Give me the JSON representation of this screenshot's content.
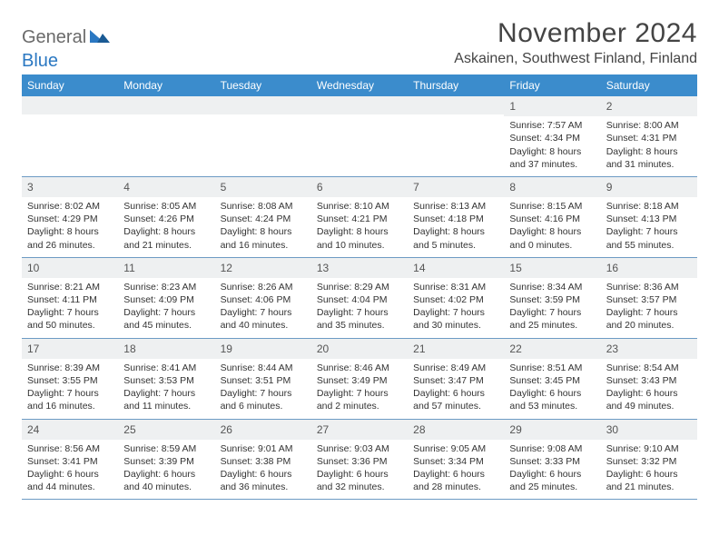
{
  "logo": {
    "text1": "General",
    "text2": "Blue"
  },
  "title": "November 2024",
  "location": "Askainen, Southwest Finland, Finland",
  "colors": {
    "header_bg": "#3b8ccc",
    "header_text": "#ffffff",
    "daynum_bg": "#eef0f1",
    "border": "#6d9bc4",
    "body_text": "#333333",
    "title_text": "#444444",
    "logo_gray": "#6a6a6a",
    "logo_blue": "#2b78c2"
  },
  "weekdays": [
    "Sunday",
    "Monday",
    "Tuesday",
    "Wednesday",
    "Thursday",
    "Friday",
    "Saturday"
  ],
  "layout": {
    "columns": 7,
    "rows": 5,
    "cell_font_size": 10.5,
    "weekday_font_size": 12,
    "title_font_size": 30,
    "location_font_size": 16
  },
  "weeks": [
    [
      null,
      null,
      null,
      null,
      null,
      {
        "n": "1",
        "sunrise": "Sunrise: 7:57 AM",
        "sunset": "Sunset: 4:34 PM",
        "daylight": "Daylight: 8 hours and 37 minutes."
      },
      {
        "n": "2",
        "sunrise": "Sunrise: 8:00 AM",
        "sunset": "Sunset: 4:31 PM",
        "daylight": "Daylight: 8 hours and 31 minutes."
      }
    ],
    [
      {
        "n": "3",
        "sunrise": "Sunrise: 8:02 AM",
        "sunset": "Sunset: 4:29 PM",
        "daylight": "Daylight: 8 hours and 26 minutes."
      },
      {
        "n": "4",
        "sunrise": "Sunrise: 8:05 AM",
        "sunset": "Sunset: 4:26 PM",
        "daylight": "Daylight: 8 hours and 21 minutes."
      },
      {
        "n": "5",
        "sunrise": "Sunrise: 8:08 AM",
        "sunset": "Sunset: 4:24 PM",
        "daylight": "Daylight: 8 hours and 16 minutes."
      },
      {
        "n": "6",
        "sunrise": "Sunrise: 8:10 AM",
        "sunset": "Sunset: 4:21 PM",
        "daylight": "Daylight: 8 hours and 10 minutes."
      },
      {
        "n": "7",
        "sunrise": "Sunrise: 8:13 AM",
        "sunset": "Sunset: 4:18 PM",
        "daylight": "Daylight: 8 hours and 5 minutes."
      },
      {
        "n": "8",
        "sunrise": "Sunrise: 8:15 AM",
        "sunset": "Sunset: 4:16 PM",
        "daylight": "Daylight: 8 hours and 0 minutes."
      },
      {
        "n": "9",
        "sunrise": "Sunrise: 8:18 AM",
        "sunset": "Sunset: 4:13 PM",
        "daylight": "Daylight: 7 hours and 55 minutes."
      }
    ],
    [
      {
        "n": "10",
        "sunrise": "Sunrise: 8:21 AM",
        "sunset": "Sunset: 4:11 PM",
        "daylight": "Daylight: 7 hours and 50 minutes."
      },
      {
        "n": "11",
        "sunrise": "Sunrise: 8:23 AM",
        "sunset": "Sunset: 4:09 PM",
        "daylight": "Daylight: 7 hours and 45 minutes."
      },
      {
        "n": "12",
        "sunrise": "Sunrise: 8:26 AM",
        "sunset": "Sunset: 4:06 PM",
        "daylight": "Daylight: 7 hours and 40 minutes."
      },
      {
        "n": "13",
        "sunrise": "Sunrise: 8:29 AM",
        "sunset": "Sunset: 4:04 PM",
        "daylight": "Daylight: 7 hours and 35 minutes."
      },
      {
        "n": "14",
        "sunrise": "Sunrise: 8:31 AM",
        "sunset": "Sunset: 4:02 PM",
        "daylight": "Daylight: 7 hours and 30 minutes."
      },
      {
        "n": "15",
        "sunrise": "Sunrise: 8:34 AM",
        "sunset": "Sunset: 3:59 PM",
        "daylight": "Daylight: 7 hours and 25 minutes."
      },
      {
        "n": "16",
        "sunrise": "Sunrise: 8:36 AM",
        "sunset": "Sunset: 3:57 PM",
        "daylight": "Daylight: 7 hours and 20 minutes."
      }
    ],
    [
      {
        "n": "17",
        "sunrise": "Sunrise: 8:39 AM",
        "sunset": "Sunset: 3:55 PM",
        "daylight": "Daylight: 7 hours and 16 minutes."
      },
      {
        "n": "18",
        "sunrise": "Sunrise: 8:41 AM",
        "sunset": "Sunset: 3:53 PM",
        "daylight": "Daylight: 7 hours and 11 minutes."
      },
      {
        "n": "19",
        "sunrise": "Sunrise: 8:44 AM",
        "sunset": "Sunset: 3:51 PM",
        "daylight": "Daylight: 7 hours and 6 minutes."
      },
      {
        "n": "20",
        "sunrise": "Sunrise: 8:46 AM",
        "sunset": "Sunset: 3:49 PM",
        "daylight": "Daylight: 7 hours and 2 minutes."
      },
      {
        "n": "21",
        "sunrise": "Sunrise: 8:49 AM",
        "sunset": "Sunset: 3:47 PM",
        "daylight": "Daylight: 6 hours and 57 minutes."
      },
      {
        "n": "22",
        "sunrise": "Sunrise: 8:51 AM",
        "sunset": "Sunset: 3:45 PM",
        "daylight": "Daylight: 6 hours and 53 minutes."
      },
      {
        "n": "23",
        "sunrise": "Sunrise: 8:54 AM",
        "sunset": "Sunset: 3:43 PM",
        "daylight": "Daylight: 6 hours and 49 minutes."
      }
    ],
    [
      {
        "n": "24",
        "sunrise": "Sunrise: 8:56 AM",
        "sunset": "Sunset: 3:41 PM",
        "daylight": "Daylight: 6 hours and 44 minutes."
      },
      {
        "n": "25",
        "sunrise": "Sunrise: 8:59 AM",
        "sunset": "Sunset: 3:39 PM",
        "daylight": "Daylight: 6 hours and 40 minutes."
      },
      {
        "n": "26",
        "sunrise": "Sunrise: 9:01 AM",
        "sunset": "Sunset: 3:38 PM",
        "daylight": "Daylight: 6 hours and 36 minutes."
      },
      {
        "n": "27",
        "sunrise": "Sunrise: 9:03 AM",
        "sunset": "Sunset: 3:36 PM",
        "daylight": "Daylight: 6 hours and 32 minutes."
      },
      {
        "n": "28",
        "sunrise": "Sunrise: 9:05 AM",
        "sunset": "Sunset: 3:34 PM",
        "daylight": "Daylight: 6 hours and 28 minutes."
      },
      {
        "n": "29",
        "sunrise": "Sunrise: 9:08 AM",
        "sunset": "Sunset: 3:33 PM",
        "daylight": "Daylight: 6 hours and 25 minutes."
      },
      {
        "n": "30",
        "sunrise": "Sunrise: 9:10 AM",
        "sunset": "Sunset: 3:32 PM",
        "daylight": "Daylight: 6 hours and 21 minutes."
      }
    ]
  ]
}
